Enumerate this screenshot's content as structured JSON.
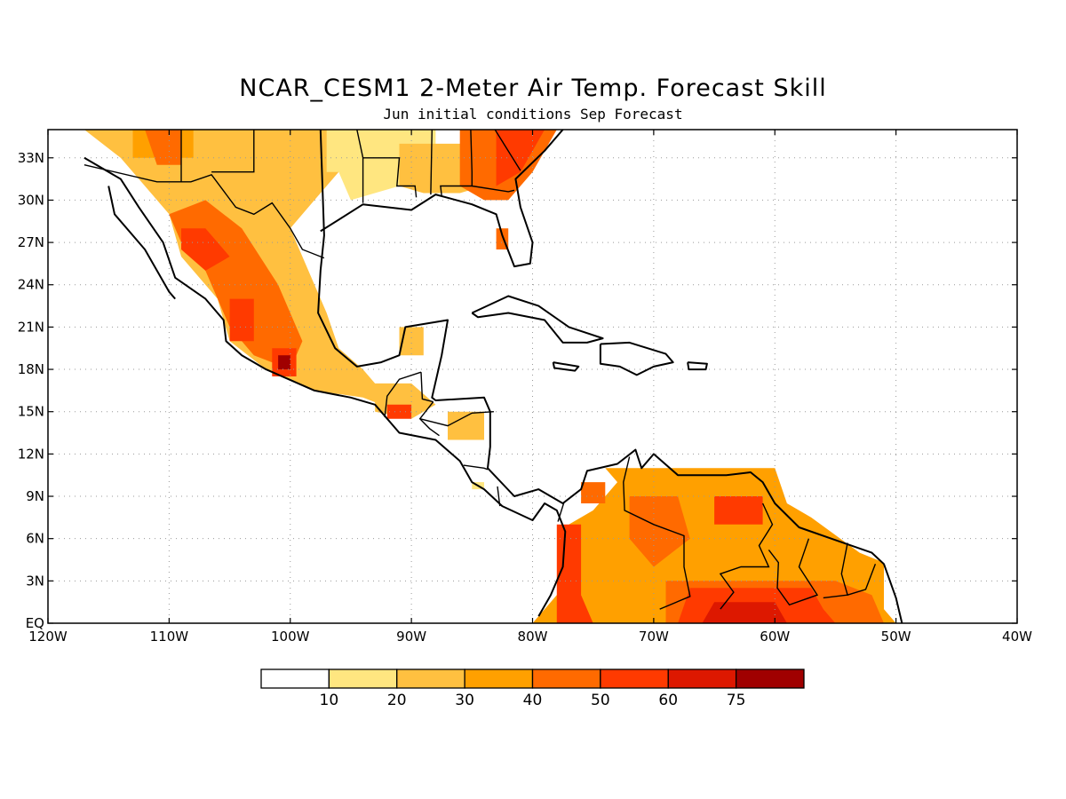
{
  "title": "NCAR_CESM1 2-Meter Air Temp. Forecast Skill",
  "subtitle": "Jun initial conditions  Sep Forecast",
  "map": {
    "lon_range": [
      -120,
      -40
    ],
    "lat_range": [
      0,
      35
    ],
    "lat_ticks": [
      {
        "lat": 0,
        "label": "EQ"
      },
      {
        "lat": 3,
        "label": "3N"
      },
      {
        "lat": 6,
        "label": "6N"
      },
      {
        "lat": 9,
        "label": "9N"
      },
      {
        "lat": 12,
        "label": "12N"
      },
      {
        "lat": 15,
        "label": "15N"
      },
      {
        "lat": 18,
        "label": "18N"
      },
      {
        "lat": 21,
        "label": "21N"
      },
      {
        "lat": 24,
        "label": "24N"
      },
      {
        "lat": 27,
        "label": "27N"
      },
      {
        "lat": 30,
        "label": "30N"
      },
      {
        "lat": 33,
        "label": "33N"
      }
    ],
    "lon_ticks": [
      {
        "lon": -120,
        "label": "120W"
      },
      {
        "lon": -110,
        "label": "110W"
      },
      {
        "lon": -100,
        "label": "100W"
      },
      {
        "lon": -90,
        "label": "90W"
      },
      {
        "lon": -80,
        "label": "80W"
      },
      {
        "lon": -70,
        "label": "70W"
      },
      {
        "lon": -60,
        "label": "60W"
      },
      {
        "lon": -50,
        "label": "50W"
      },
      {
        "lon": -40,
        "label": "40W"
      }
    ],
    "grid": "dotted"
  },
  "colorbar": {
    "thresholds": [
      "10",
      "20",
      "30",
      "40",
      "50",
      "60",
      "75"
    ],
    "colors": [
      "#ffffff",
      "#ffe680",
      "#ffc040",
      "#ffa000",
      "#ff6a00",
      "#ff3a00",
      "#dd1800",
      "#a00000"
    ]
  },
  "skill_regions": [
    {
      "level": 2,
      "pts": [
        [
          -117,
          35
        ],
        [
          -95,
          35
        ],
        [
          -95,
          33
        ],
        [
          -98,
          30
        ],
        [
          -100,
          28
        ],
        [
          -98,
          24
        ],
        [
          -97,
          22
        ],
        [
          -96,
          19.5
        ],
        [
          -94,
          18
        ],
        [
          -92,
          16
        ],
        [
          -91,
          15
        ],
        [
          -94,
          16
        ],
        [
          -98,
          16.5
        ],
        [
          -102,
          18
        ],
        [
          -105,
          20
        ],
        [
          -106,
          23
        ],
        [
          -109,
          26
        ],
        [
          -110,
          29
        ],
        [
          -112,
          31
        ],
        [
          -114,
          33
        ]
      ]
    },
    {
      "level": 4,
      "pts": [
        [
          -110,
          29
        ],
        [
          -107,
          30
        ],
        [
          -104,
          28
        ],
        [
          -101,
          24
        ],
        [
          -99,
          20
        ],
        [
          -100,
          18
        ],
        [
          -103,
          19
        ],
        [
          -105,
          21
        ],
        [
          -107,
          25
        ],
        [
          -109,
          27
        ]
      ]
    },
    {
      "level": 5,
      "pts": [
        [
          -109,
          28
        ],
        [
          -107,
          28
        ],
        [
          -105,
          26
        ],
        [
          -107,
          25
        ],
        [
          -109,
          26.5
        ]
      ]
    },
    {
      "level": 5,
      "pts": [
        [
          -105,
          23
        ],
        [
          -103,
          23
        ],
        [
          -103,
          20
        ],
        [
          -105,
          20
        ]
      ]
    },
    {
      "level": 5,
      "pts": [
        [
          -101.5,
          19.5
        ],
        [
          -99.5,
          19.5
        ],
        [
          -99.5,
          17.5
        ],
        [
          -101.5,
          17.5
        ]
      ]
    },
    {
      "level": 7,
      "pts": [
        [
          -101,
          19
        ],
        [
          -100,
          19
        ],
        [
          -100,
          18
        ],
        [
          -101,
          18
        ]
      ]
    },
    {
      "level": 3,
      "pts": [
        [
          -113,
          35
        ],
        [
          -108,
          35
        ],
        [
          -108,
          33
        ],
        [
          -113,
          33
        ]
      ]
    },
    {
      "level": 4,
      "pts": [
        [
          -112,
          35
        ],
        [
          -109,
          35
        ],
        [
          -109,
          32.5
        ],
        [
          -111,
          32.5
        ]
      ]
    },
    {
      "level": 1,
      "pts": [
        [
          -96,
          35
        ],
        [
          -88,
          35
        ],
        [
          -88,
          33
        ],
        [
          -91,
          31
        ],
        [
          -95,
          30
        ],
        [
          -96,
          32
        ]
      ]
    },
    {
      "level": 2,
      "pts": [
        [
          -91,
          34
        ],
        [
          -84,
          34
        ],
        [
          -84,
          31
        ],
        [
          -86,
          30.5
        ],
        [
          -89,
          30.5
        ],
        [
          -91,
          31
        ]
      ]
    },
    {
      "level": 4,
      "pts": [
        [
          -86,
          35
        ],
        [
          -78,
          35
        ],
        [
          -80,
          32
        ],
        [
          -82,
          30
        ],
        [
          -84,
          30
        ],
        [
          -86,
          31
        ]
      ]
    },
    {
      "level": 5,
      "pts": [
        [
          -83,
          35
        ],
        [
          -79,
          35
        ],
        [
          -81,
          32
        ],
        [
          -83,
          31
        ]
      ]
    },
    {
      "level": 4,
      "pts": [
        [
          -83,
          28
        ],
        [
          -82,
          28
        ],
        [
          -82,
          26.5
        ],
        [
          -83,
          26.5
        ]
      ]
    },
    {
      "level": 1,
      "pts": [
        [
          -97,
          35
        ],
        [
          -94,
          35
        ],
        [
          -94,
          32
        ],
        [
          -97,
          32
        ]
      ]
    },
    {
      "level": 2,
      "pts": [
        [
          -91,
          21
        ],
        [
          -89,
          21
        ],
        [
          -89,
          19
        ],
        [
          -91,
          19
        ]
      ]
    },
    {
      "level": 2,
      "pts": [
        [
          -93,
          17
        ],
        [
          -90,
          17
        ],
        [
          -88,
          15.5
        ],
        [
          -90,
          14.5
        ],
        [
          -93,
          15
        ]
      ]
    },
    {
      "level": 5,
      "pts": [
        [
          -92,
          15.5
        ],
        [
          -90,
          15.5
        ],
        [
          -90,
          14.5
        ],
        [
          -92,
          14.5
        ]
      ]
    },
    {
      "level": 2,
      "pts": [
        [
          -87,
          15
        ],
        [
          -84,
          15
        ],
        [
          -84,
          13
        ],
        [
          -87,
          13
        ]
      ]
    },
    {
      "level": 1,
      "pts": [
        [
          -85,
          10
        ],
        [
          -84,
          10
        ],
        [
          -84,
          9.5
        ],
        [
          -85,
          9.5
        ]
      ]
    },
    {
      "level": 3,
      "pts": [
        [
          -74,
          11
        ],
        [
          -60,
          11
        ],
        [
          -59,
          8.5
        ],
        [
          -57,
          7.5
        ],
        [
          -53,
          5
        ],
        [
          -51,
          4.3
        ],
        [
          -51,
          1
        ],
        [
          -50,
          0
        ],
        [
          -80,
          0
        ],
        [
          -78,
          2
        ],
        [
          -77,
          4
        ],
        [
          -77,
          7
        ],
        [
          -75,
          8
        ],
        [
          -73,
          10
        ]
      ]
    },
    {
      "level": 4,
      "pts": [
        [
          -72,
          9
        ],
        [
          -68,
          9
        ],
        [
          -67,
          6
        ],
        [
          -70,
          4
        ],
        [
          -72,
          6
        ]
      ]
    },
    {
      "level": 5,
      "pts": [
        [
          -78,
          7
        ],
        [
          -76,
          7
        ],
        [
          -76,
          2
        ],
        [
          -75,
          0
        ],
        [
          -78,
          0
        ]
      ]
    },
    {
      "level": 4,
      "pts": [
        [
          -69,
          3
        ],
        [
          -55,
          3
        ],
        [
          -52,
          2
        ],
        [
          -51,
          0
        ],
        [
          -69,
          0
        ]
      ]
    },
    {
      "level": 5,
      "pts": [
        [
          -67,
          2.5
        ],
        [
          -57,
          2.5
        ],
        [
          -56,
          1
        ],
        [
          -55,
          0
        ],
        [
          -68,
          0
        ]
      ]
    },
    {
      "level": 6,
      "pts": [
        [
          -65,
          1.5
        ],
        [
          -60,
          1.5
        ],
        [
          -59,
          0
        ],
        [
          -66,
          0
        ]
      ]
    },
    {
      "level": 5,
      "pts": [
        [
          -65,
          9
        ],
        [
          -61,
          9
        ],
        [
          -61,
          7
        ],
        [
          -65,
          7
        ]
      ]
    },
    {
      "level": 4,
      "pts": [
        [
          -76,
          10
        ],
        [
          -74,
          10
        ],
        [
          -74,
          8.5
        ],
        [
          -76,
          8.5
        ]
      ]
    }
  ],
  "coastlines": [
    [
      [
        -117,
        33
      ],
      [
        -114,
        31.5
      ],
      [
        -112.5,
        29.5
      ],
      [
        -110.5,
        27
      ],
      [
        -109.5,
        24.5
      ],
      [
        -107,
        23
      ],
      [
        -105.5,
        21.5
      ],
      [
        -105.3,
        20
      ],
      [
        -104,
        19
      ],
      [
        -102,
        18
      ],
      [
        -98,
        16.5
      ],
      [
        -95,
        16
      ],
      [
        -93,
        15.5
      ],
      [
        -91,
        13.5
      ],
      [
        -88,
        13
      ],
      [
        -86,
        11.5
      ],
      [
        -85,
        10
      ],
      [
        -84,
        9.5
      ],
      [
        -82.5,
        8.3
      ],
      [
        -80,
        7.3
      ],
      [
        -79,
        8.5
      ],
      [
        -78,
        8
      ],
      [
        -77.3,
        6.5
      ],
      [
        -77.5,
        4
      ],
      [
        -78.5,
        2
      ],
      [
        -79.5,
        0.5
      ]
    ],
    [
      [
        -115,
        31
      ],
      [
        -114.5,
        29
      ],
      [
        -112,
        26.5
      ],
      [
        -110,
        23.5
      ],
      [
        -109.5,
        23
      ]
    ],
    [
      [
        -97.5,
        35
      ],
      [
        -97.2,
        27.5
      ],
      [
        -97.5,
        25
      ],
      [
        -97.7,
        22
      ],
      [
        -96.3,
        19.5
      ],
      [
        -94.5,
        18.2
      ],
      [
        -92.5,
        18.5
      ],
      [
        -91,
        19
      ],
      [
        -90.5,
        21
      ],
      [
        -87,
        21.5
      ],
      [
        -87.5,
        19
      ],
      [
        -88.3,
        16
      ],
      [
        -88,
        15.8
      ],
      [
        -84,
        16
      ],
      [
        -83.5,
        15
      ],
      [
        -83.5,
        12.5
      ],
      [
        -83.7,
        11
      ],
      [
        -81.5,
        9
      ],
      [
        -79.5,
        9.5
      ],
      [
        -77.5,
        8.5
      ],
      [
        -76,
        9.5
      ],
      [
        -75.5,
        10.8
      ],
      [
        -73,
        11.3
      ],
      [
        -71.5,
        12.3
      ],
      [
        -71,
        11
      ],
      [
        -70,
        12
      ],
      [
        -68,
        10.5
      ],
      [
        -64,
        10.5
      ],
      [
        -62,
        10.7
      ],
      [
        -61,
        10
      ],
      [
        -60,
        8.5
      ],
      [
        -58,
        6.8
      ],
      [
        -55,
        5.9
      ],
      [
        -52,
        5
      ],
      [
        -51,
        4.2
      ],
      [
        -50,
        1.8
      ],
      [
        -49.5,
        0
      ]
    ],
    [
      [
        -97.5,
        27.8
      ],
      [
        -94,
        29.7
      ],
      [
        -90,
        29.3
      ],
      [
        -88,
        30.4
      ],
      [
        -85,
        29.7
      ],
      [
        -83,
        29
      ],
      [
        -82.5,
        27.5
      ],
      [
        -81.5,
        25.3
      ],
      [
        -80.2,
        25.5
      ],
      [
        -80,
        27
      ],
      [
        -81,
        29.5
      ],
      [
        -81.4,
        31.5
      ],
      [
        -79,
        33.5
      ],
      [
        -77.5,
        35
      ]
    ],
    [
      [
        -85,
        22
      ],
      [
        -82,
        23.2
      ],
      [
        -79.5,
        22.5
      ],
      [
        -77,
        21
      ],
      [
        -74.2,
        20.2
      ],
      [
        -75.5,
        19.9
      ],
      [
        -77.5,
        19.9
      ],
      [
        -79,
        21.5
      ],
      [
        -82,
        22
      ],
      [
        -84.5,
        21.7
      ],
      [
        -85,
        22
      ]
    ],
    [
      [
        -74.4,
        19.8
      ],
      [
        -72,
        19.9
      ],
      [
        -69,
        19.1
      ],
      [
        -68.4,
        18.5
      ],
      [
        -70,
        18.2
      ],
      [
        -71.4,
        17.6
      ],
      [
        -72.8,
        18.2
      ],
      [
        -74.4,
        18.4
      ],
      [
        -74.4,
        19.8
      ]
    ],
    [
      [
        -78.3,
        18.5
      ],
      [
        -76.2,
        18.2
      ],
      [
        -76.5,
        17.9
      ],
      [
        -78.2,
        18.1
      ],
      [
        -78.3,
        18.5
      ]
    ],
    [
      [
        -67.2,
        18.5
      ],
      [
        -65.6,
        18.4
      ],
      [
        -65.7,
        18.0
      ],
      [
        -67.1,
        18.0
      ],
      [
        -67.2,
        18.5
      ]
    ]
  ],
  "borders": [
    [
      [
        -117,
        32.5
      ],
      [
        -111,
        31.3
      ],
      [
        -108.2,
        31.3
      ],
      [
        -106.5,
        31.8
      ],
      [
        -104.5,
        29.5
      ],
      [
        -103,
        29
      ],
      [
        -101.5,
        29.8
      ],
      [
        -100,
        28
      ],
      [
        -99,
        26.5
      ],
      [
        -97.2,
        25.9
      ]
    ],
    [
      [
        -92.2,
        14.6
      ],
      [
        -92,
        16.1
      ],
      [
        -91,
        17.3
      ],
      [
        -89.2,
        17.8
      ]
    ],
    [
      [
        -89.2,
        17.8
      ],
      [
        -89.1,
        15.9
      ],
      [
        -88.2,
        15.7
      ]
    ],
    [
      [
        -88.2,
        15.7
      ],
      [
        -89.3,
        14.5
      ],
      [
        -88.5,
        13.8
      ],
      [
        -87.7,
        13.3
      ]
    ],
    [
      [
        -89.3,
        14.5
      ],
      [
        -87,
        14
      ],
      [
        -85,
        14.9
      ],
      [
        -83.2,
        15
      ]
    ],
    [
      [
        -85.7,
        11.2
      ],
      [
        -84,
        11
      ],
      [
        -83.7,
        10.9
      ]
    ],
    [
      [
        -82.9,
        9.7
      ],
      [
        -82.7,
        8.3
      ]
    ],
    [
      [
        -77.4,
        8.6
      ],
      [
        -77.9,
        7.2
      ]
    ],
    [
      [
        -72,
        11.8
      ],
      [
        -72.5,
        10
      ],
      [
        -72.4,
        8
      ],
      [
        -70,
        7
      ],
      [
        -67.5,
        6.2
      ],
      [
        -67.5,
        4
      ],
      [
        -67,
        1.9
      ],
      [
        -69.5,
        1
      ]
    ],
    [
      [
        -61,
        8.5
      ],
      [
        -60.2,
        7
      ],
      [
        -61.3,
        5.5
      ],
      [
        -60.5,
        4
      ],
      [
        -62.8,
        4
      ],
      [
        -64.5,
        3.5
      ],
      [
        -63.4,
        2.2
      ],
      [
        -64.5,
        1
      ]
    ],
    [
      [
        -57.2,
        6
      ],
      [
        -58,
        4
      ],
      [
        -56.5,
        2
      ],
      [
        -58.8,
        1.3
      ],
      [
        -59.8,
        2.5
      ],
      [
        -59.7,
        4.3
      ],
      [
        -60.5,
        5.2
      ]
    ],
    [
      [
        -54,
        5.7
      ],
      [
        -54.5,
        3.5
      ],
      [
        -54,
        2
      ],
      [
        -56,
        1.8
      ]
    ],
    [
      [
        -51.7,
        4.2
      ],
      [
        -52.5,
        2.4
      ],
      [
        -54,
        2
      ]
    ],
    [
      [
        -109,
        35
      ],
      [
        -109,
        31.3
      ]
    ],
    [
      [
        -103,
        35
      ],
      [
        -103,
        32
      ],
      [
        -106.5,
        32
      ]
    ],
    [
      [
        -94.5,
        35
      ],
      [
        -94,
        33
      ],
      [
        -94,
        29.8
      ]
    ],
    [
      [
        -94,
        33
      ],
      [
        -91,
        33
      ],
      [
        -91.2,
        31
      ],
      [
        -89.7,
        31
      ],
      [
        -89.6,
        30.2
      ]
    ],
    [
      [
        -88.3,
        35
      ],
      [
        -88.4,
        30.4
      ]
    ],
    [
      [
        -85.1,
        35
      ],
      [
        -85,
        32
      ],
      [
        -85,
        31
      ],
      [
        -87.6,
        31
      ],
      [
        -87.5,
        30.3
      ]
    ],
    [
      [
        -85,
        31
      ],
      [
        -82,
        30.6
      ],
      [
        -81.5,
        30.7
      ]
    ],
    [
      [
        -83.1,
        35
      ],
      [
        -81,
        32.1
      ]
    ]
  ]
}
